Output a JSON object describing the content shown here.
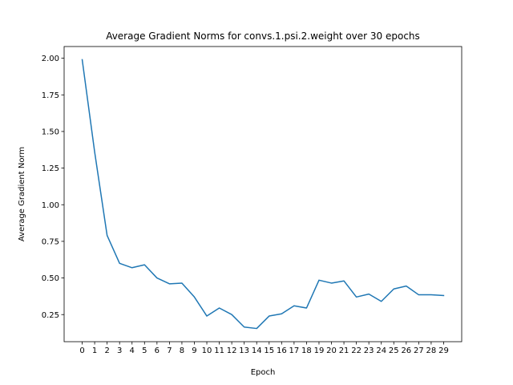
{
  "chart_data": {
    "type": "line",
    "title": "Average Gradient Norms for convs.1.psi.2.weight over 30 epochs",
    "xlabel": "Epoch",
    "ylabel": "Average Gradient Norm",
    "xlim": [
      -1.45,
      30.45
    ],
    "ylim": [
      0.065,
      2.08
    ],
    "x_ticks": [
      0,
      1,
      2,
      3,
      4,
      5,
      6,
      7,
      8,
      9,
      10,
      11,
      12,
      13,
      14,
      15,
      16,
      17,
      18,
      19,
      20,
      21,
      22,
      23,
      24,
      25,
      26,
      27,
      28,
      29
    ],
    "y_ticks": [
      0.25,
      0.5,
      0.75,
      1.0,
      1.25,
      1.5,
      1.75,
      2.0
    ],
    "y_tick_labels": [
      "0.25",
      "0.50",
      "0.75",
      "1.00",
      "1.25",
      "1.50",
      "1.75",
      "2.00"
    ],
    "grid": false,
    "series": [
      {
        "color": "#1f77b4",
        "x": [
          0,
          1,
          2,
          3,
          4,
          5,
          6,
          7,
          8,
          9,
          10,
          11,
          12,
          13,
          14,
          15,
          16,
          17,
          18,
          19,
          20,
          21,
          22,
          23,
          24,
          25,
          26,
          27,
          28,
          29
        ],
        "values": [
          1.99,
          1.36,
          0.79,
          0.6,
          0.57,
          0.59,
          0.5,
          0.46,
          0.465,
          0.37,
          0.24,
          0.295,
          0.25,
          0.165,
          0.155,
          0.24,
          0.255,
          0.31,
          0.295,
          0.485,
          0.465,
          0.48,
          0.37,
          0.39,
          0.34,
          0.425,
          0.445,
          0.385,
          0.385,
          0.38
        ]
      }
    ]
  }
}
